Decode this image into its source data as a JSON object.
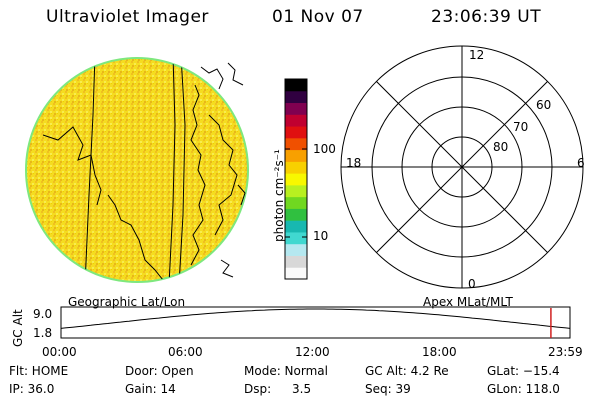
{
  "header": {
    "instrument": "Ultraviolet Imager",
    "date": "01 Nov 07",
    "time": "23:06:39 UT"
  },
  "geo_panel": {
    "caption": "Geographic Lat/Lon"
  },
  "colorbar": {
    "unit_label": "photon cm⁻²s⁻¹",
    "ticks": [
      "100",
      "10"
    ],
    "colors": [
      "#fafafa",
      "#d8d8d8",
      "#b5e8f0",
      "#40d8d0",
      "#18b8b0",
      "#30c040",
      "#70d820",
      "#b8f020",
      "#f8f800",
      "#f8d000",
      "#f8a000",
      "#f05000",
      "#e01010",
      "#c00030",
      "#800050",
      "#300040",
      "#000000"
    ]
  },
  "polar_panel": {
    "caption": "Apex MLat/MLT",
    "mlt_labels": {
      "top": "12",
      "bottom": "0",
      "left": "18",
      "right": "6"
    },
    "lat_labels": [
      "60",
      "70",
      "80"
    ]
  },
  "altitude_plot": {
    "axis_label": "GC Alt",
    "y_ticks": [
      "9.0",
      "1.8"
    ],
    "x_ticks": [
      "00:00",
      "06:00",
      "12:00",
      "18:00",
      "23:59"
    ],
    "current_marker_hour": 23.1,
    "marker_color": "#d02020"
  },
  "status": {
    "flt_label": "Flt: HOME",
    "ip_label": "IP: 36.0",
    "door_label": "Door: Open",
    "gain_label": "Gain: 14",
    "mode_label": "Mode: Normal",
    "dsp_label": "Dsp:",
    "dsp_value": "3.5",
    "gcalt_label": "GC Alt: 4.2 Re",
    "seq_label": "Seq: 39",
    "glat_label": "GLat: −15.4",
    "glon_label": "GLon: 118.0"
  },
  "colors": {
    "image_fill": "#f5dc20",
    "limb": "#7ee87e"
  }
}
